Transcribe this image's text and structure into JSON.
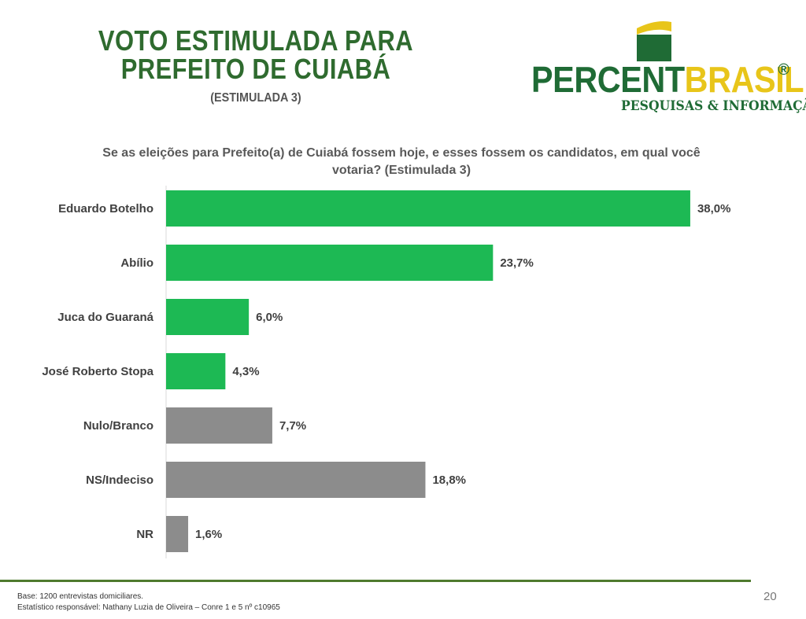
{
  "header": {
    "title_line1": "VOTO ESTIMULADA PARA",
    "title_line2": "PREFEITO DE  CUIABÁ",
    "subtitle": "(ESTIMULADA 3)"
  },
  "logo": {
    "word_green": "PERCENT",
    "word_yellow": "BRASIL",
    "registered": "®",
    "tagline": "PESQUISAS & INFORMAÇÃO"
  },
  "question": "Se as eleições para Prefeito(a) de Cuiabá fossem hoje, e esses fossem os candidatos, em qual você votaria? (Estimulada 3)",
  "chart_data": {
    "type": "bar",
    "orientation": "horizontal",
    "categories": [
      "Eduardo Botelho",
      "Abílio",
      "Juca do Guaraná",
      "José Roberto Stopa",
      "Nulo/Branco",
      "NS/Indeciso",
      "NR"
    ],
    "values": [
      38.0,
      23.7,
      6.0,
      4.3,
      7.7,
      18.8,
      1.6
    ],
    "value_labels": [
      "38,0%",
      "23,7%",
      "6,0%",
      "4,3%",
      "7,7%",
      "18,8%",
      "1,6%"
    ],
    "bar_colors": [
      "#1db954",
      "#1db954",
      "#1db954",
      "#1db954",
      "#8c8c8c",
      "#8c8c8c",
      "#8c8c8c"
    ],
    "xlim": [
      0,
      40
    ],
    "grid": false,
    "legend": "none"
  },
  "footer": {
    "line1": "Base: 1200 entrevistas domiciliares.",
    "line2": "Estatístico responsável: Nathany Luzia de Oliveira – Conre 1 e 5 nº c10965"
  },
  "page_number": "20"
}
